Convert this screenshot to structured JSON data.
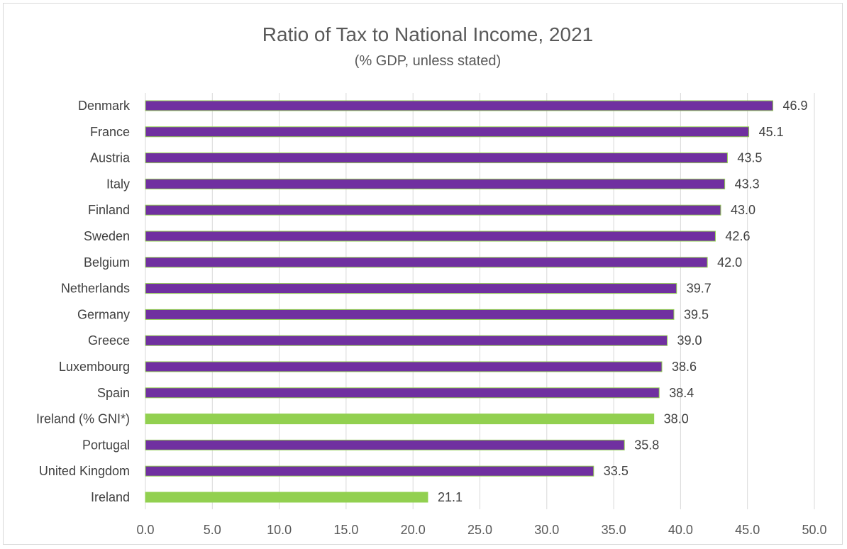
{
  "chart_data": {
    "type": "bar",
    "orientation": "horizontal",
    "title": "Ratio of Tax to National Income, 2021",
    "subtitle": "(% GDP, unless stated)",
    "xlabel": "",
    "ylabel": "",
    "xlim": [
      0,
      50
    ],
    "ticks": [
      "0.0",
      "5.0",
      "10.0",
      "15.0",
      "20.0",
      "25.0",
      "30.0",
      "35.0",
      "40.0",
      "45.0",
      "50.0"
    ],
    "tick_values": [
      0,
      5,
      10,
      15,
      20,
      25,
      30,
      35,
      40,
      45,
      50
    ],
    "grid": "vertical",
    "legend": "none",
    "colors": {
      "default": "#7030a0",
      "highlight": "#92d050",
      "bar_edge": "#92d050"
    },
    "categories": [
      "Denmark",
      "France",
      "Austria",
      "Italy",
      "Finland",
      "Sweden",
      "Belgium",
      "Netherlands",
      "Germany",
      "Greece",
      "Luxembourg",
      "Spain",
      "Ireland (% GNI*)",
      "Portugal",
      "United Kingdom",
      "Ireland"
    ],
    "values": [
      46.9,
      45.1,
      43.5,
      43.3,
      43.0,
      42.6,
      42.0,
      39.7,
      39.5,
      39.0,
      38.6,
      38.4,
      38.0,
      35.8,
      33.5,
      21.1
    ],
    "value_labels": [
      "46.9",
      "45.1",
      "43.5",
      "43.3",
      "43.0",
      "42.6",
      "42.0",
      "39.7",
      "39.5",
      "39.0",
      "38.6",
      "38.4",
      "38.0",
      "35.8",
      "33.5",
      "21.1"
    ],
    "highlighted": [
      false,
      false,
      false,
      false,
      false,
      false,
      false,
      false,
      false,
      false,
      false,
      false,
      true,
      false,
      false,
      true
    ]
  }
}
